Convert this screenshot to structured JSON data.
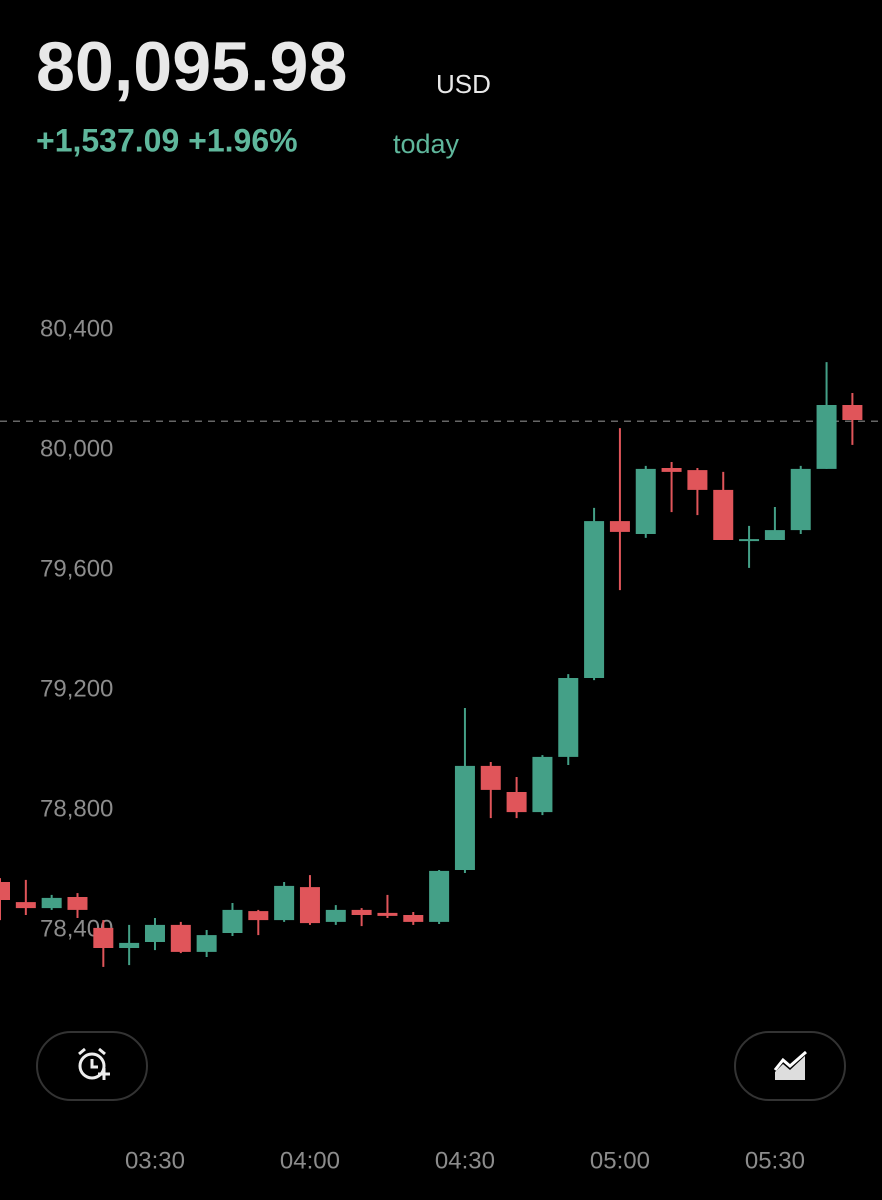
{
  "header": {
    "price": "80,095.98",
    "currency": "USD",
    "change": "+1,537.09 +1.96%",
    "period": "today"
  },
  "chart_data": {
    "type": "candlestick",
    "categories": [
      null,
      null,
      null,
      null,
      null,
      null,
      "03:30",
      null,
      null,
      null,
      null,
      null,
      "04:00",
      null,
      null,
      null,
      null,
      null,
      "04:30",
      null,
      null,
      null,
      null,
      null,
      "05:00",
      null,
      null,
      null,
      null,
      null,
      "05:30",
      null,
      null,
      null
    ],
    "open": [
      78560,
      78493,
      78473,
      78510,
      78407,
      78340,
      78360,
      78417,
      78327,
      78390,
      78463,
      78433,
      78543,
      78427,
      78467,
      78457,
      78450,
      78427,
      78600,
      78947,
      78860,
      78793,
      78977,
      79240,
      79763,
      79720,
      79940,
      79933,
      79867,
      79697,
      79700,
      79733,
      79937,
      80150
    ],
    "high": [
      78573,
      78567,
      78517,
      78523,
      78433,
      78417,
      78440,
      78427,
      78400,
      78490,
      78467,
      78560,
      78583,
      78483,
      78473,
      78517,
      78460,
      78600,
      79140,
      78960,
      78910,
      78983,
      79253,
      79807,
      80073,
      79947,
      79960,
      79940,
      79927,
      79747,
      79810,
      79947,
      80293,
      80190
    ],
    "low": [
      78433,
      78450,
      78467,
      78440,
      78277,
      78283,
      78333,
      78323,
      78310,
      78380,
      78383,
      78427,
      78417,
      78417,
      78413,
      78440,
      78417,
      78420,
      78590,
      78773,
      78773,
      78783,
      78950,
      79233,
      79533,
      79707,
      79793,
      79783,
      79700,
      79607,
      79700,
      79720,
      79937,
      80017
    ],
    "close": [
      78500,
      78473,
      78507,
      78467,
      78340,
      78357,
      78417,
      78327,
      78383,
      78467,
      78433,
      78547,
      78423,
      78467,
      78450,
      78447,
      78427,
      78597,
      78947,
      78867,
      78793,
      78977,
      79240,
      79763,
      79727,
      79937,
      79927,
      79867,
      79700,
      79703,
      79733,
      79937,
      80150,
      80100
    ],
    "up_color": "#44a087",
    "down_color": "#e0555a",
    "price_line": 80095.98,
    "ylim": [
      78200,
      80800
    ],
    "yticks": [
      {
        "value": 78400,
        "label": "78,400"
      },
      {
        "value": 78800,
        "label": "78,800"
      },
      {
        "value": 79200,
        "label": "79,200"
      },
      {
        "value": 79600,
        "label": "79,600"
      },
      {
        "value": 80000,
        "label": "80,000"
      },
      {
        "value": 80400,
        "label": "80,400"
      }
    ]
  }
}
